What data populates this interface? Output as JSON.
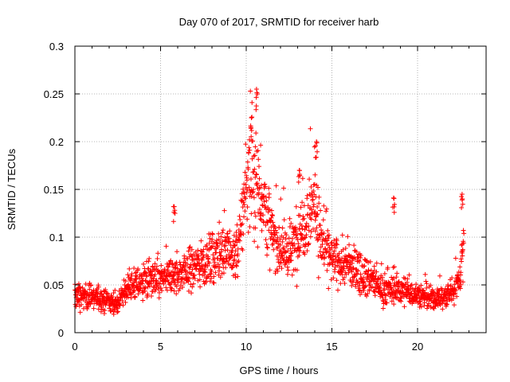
{
  "chart_data": {
    "type": "scatter",
    "title": "Day 070 of 2017, SRMTID for receiver harb",
    "xlabel": "GPS time / hours",
    "ylabel": "SRMTID / TECUs",
    "xlim": [
      0,
      24
    ],
    "ylim": [
      0,
      0.3
    ],
    "x_ticks": [
      0,
      5,
      10,
      15,
      20
    ],
    "x_tick_labels": [
      "0",
      "5",
      "10",
      "15",
      "20"
    ],
    "y_ticks": [
      0,
      0.05,
      0.1,
      0.15,
      0.2,
      0.25,
      0.3
    ],
    "y_tick_labels": [
      "0",
      "0.05",
      "0.1",
      "0.15",
      "0.2",
      "0.25",
      "0.3"
    ],
    "grid": true,
    "marker": "+",
    "color": "#ff0000",
    "series": [
      {
        "name": "SRMTID",
        "x_range_hours": [
          0,
          22.7
        ],
        "trend": {
          "x": [
            0,
            1,
            2,
            2.5,
            3,
            4,
            5,
            6,
            7,
            7.8,
            8.5,
            9.5,
            10,
            10.5,
            11,
            11.5,
            12,
            12.5,
            13,
            14,
            14.3,
            15,
            16,
            17,
            18,
            19,
            20,
            20.8,
            21.5,
            22,
            22.5,
            22.7
          ],
          "y": [
            0.038,
            0.038,
            0.032,
            0.03,
            0.045,
            0.055,
            0.055,
            0.06,
            0.07,
            0.075,
            0.085,
            0.08,
            0.16,
            0.165,
            0.14,
            0.1,
            0.09,
            0.08,
            0.1,
            0.14,
            0.1,
            0.075,
            0.07,
            0.06,
            0.045,
            0.045,
            0.04,
            0.035,
            0.037,
            0.042,
            0.06,
            0.1
          ]
        },
        "notable_peaks": [
          {
            "x": 10.6,
            "y": 0.255
          },
          {
            "x": 10.3,
            "y": 0.225
          },
          {
            "x": 14.1,
            "y": 0.2
          },
          {
            "x": 13.1,
            "y": 0.17
          },
          {
            "x": 5.8,
            "y": 0.132
          },
          {
            "x": 18.6,
            "y": 0.141
          },
          {
            "x": 22.6,
            "y": 0.145
          }
        ]
      }
    ]
  }
}
